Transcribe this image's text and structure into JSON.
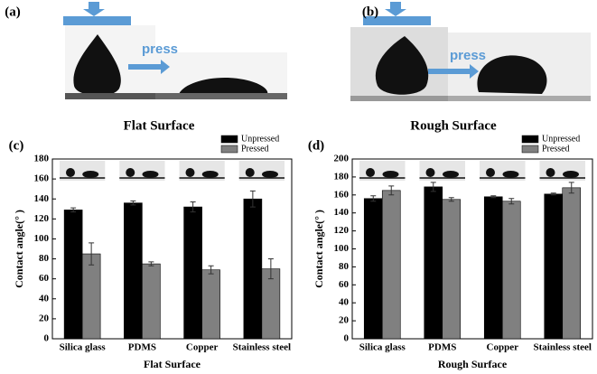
{
  "panels": [
    {
      "label": "(a)",
      "arrow_text": "press",
      "caption": "Flat Surface"
    },
    {
      "label": "(b)",
      "arrow_text": "press",
      "caption": "Rough Surface"
    }
  ],
  "chart_data": [
    {
      "type": "bar",
      "label": "(c)",
      "x_label": "Flat Surface",
      "y_label": "Contact angle(° )",
      "categories": [
        "Silica glass",
        "PDMS",
        "Copper",
        "Stainless steel"
      ],
      "series": [
        {
          "name": "Unpressed",
          "color": "#000000",
          "values": [
            129,
            136,
            132,
            140
          ],
          "errors": [
            2,
            2,
            5,
            8
          ]
        },
        {
          "name": "Pressed",
          "color": "#808080",
          "values": [
            85,
            75,
            69,
            70
          ],
          "errors": [
            11,
            2,
            4,
            10
          ]
        }
      ],
      "ylim": [
        0,
        180
      ],
      "yticks": [
        0,
        20,
        40,
        60,
        80,
        100,
        120,
        140,
        160,
        180
      ],
      "legend": "top-right"
    },
    {
      "type": "bar",
      "label": "(d)",
      "x_label": "Rough Surface",
      "y_label": "Contact angle(° )",
      "categories": [
        "Silica glass",
        "PDMS",
        "Copper",
        "Stainless steel"
      ],
      "series": [
        {
          "name": "Unpressed",
          "color": "#000000",
          "values": [
            156,
            169,
            158,
            161
          ],
          "errors": [
            3,
            5,
            1,
            1
          ]
        },
        {
          "name": "Pressed",
          "color": "#808080",
          "values": [
            165,
            155,
            153,
            168
          ],
          "errors": [
            5,
            2,
            3,
            6
          ]
        }
      ],
      "ylim": [
        0,
        200
      ],
      "yticks": [
        0,
        20,
        40,
        60,
        80,
        100,
        120,
        140,
        160,
        180,
        200
      ],
      "legend": "top-right"
    }
  ]
}
